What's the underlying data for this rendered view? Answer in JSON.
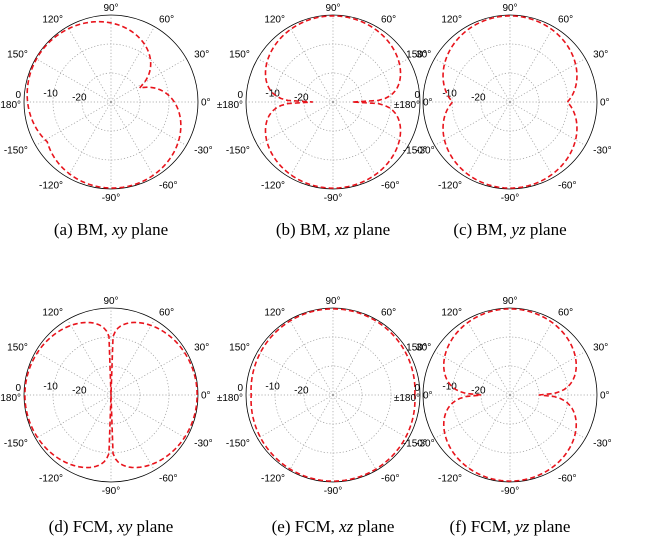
{
  "chart_data": [
    {
      "type": "polar",
      "caption": {
        "prefix": "(a) BM, ",
        "italic": "xy",
        "suffix": " plane"
      },
      "angle_labels": [
        "90°",
        "60°",
        "30°",
        "0°",
        "-30°",
        "-60°",
        "-90°",
        "-120°",
        "-150°",
        "0\n±180°",
        "150°",
        "120°"
      ],
      "radial_labels": [
        "-10",
        "-20"
      ],
      "r_ticks_db": [
        0,
        -10,
        -20,
        -30
      ],
      "r_min_db": -30,
      "curve_color": "#e8141c",
      "series": [
        {
          "type": "lobes",
          "min_db": -28,
          "lobes": [
            {
              "center_deg": 145,
              "width_deg": 160
            },
            {
              "center_deg": -85,
              "width_deg": 150
            }
          ]
        }
      ]
    },
    {
      "type": "polar",
      "caption": {
        "prefix": "(b) BM, ",
        "italic": "xz",
        "suffix": " plane"
      },
      "angle_labels": [
        "90°",
        "60°",
        "30°",
        "0°",
        "-30°",
        "-60°",
        "-90°",
        "-120°",
        "-150°",
        "0\n±180°",
        "150°",
        "120°"
      ],
      "radial_labels": [
        "-10",
        "-20"
      ],
      "r_ticks_db": [
        0,
        -10,
        -20,
        -30
      ],
      "r_min_db": -30,
      "curve_color": "#e8141c",
      "series": [
        {
          "type": "peanut",
          "min_db": -23,
          "sharpness": 0.6,
          "axis_deg": 90
        }
      ]
    },
    {
      "type": "polar",
      "caption": {
        "prefix": "(c) BM, ",
        "italic": "yz",
        "suffix": " plane"
      },
      "angle_labels": [
        "90°",
        "60°",
        "30°",
        "0°",
        "-30°",
        "-60°",
        "-90°",
        "-120°",
        "-150°",
        "0\n±180°",
        "150°",
        "120°"
      ],
      "radial_labels": [
        "-10",
        "-20"
      ],
      "r_ticks_db": [
        0,
        -10,
        -20,
        -30
      ],
      "r_min_db": -30,
      "curve_color": "#e8141c",
      "series": [
        {
          "type": "peanut",
          "min_db": -10,
          "sharpness": 1.0,
          "axis_deg": 90
        }
      ]
    },
    {
      "type": "polar",
      "caption": {
        "prefix": "(d) FCM, ",
        "italic": "xy",
        "suffix": " plane"
      },
      "angle_labels": [
        "90°",
        "60°",
        "30°",
        "0°",
        "-30°",
        "-60°",
        "-90°",
        "-120°",
        "-150°",
        "0\n±180°",
        "150°",
        "120°"
      ],
      "radial_labels": [
        "-10",
        "-20"
      ],
      "r_ticks_db": [
        0,
        -10,
        -20,
        -30
      ],
      "r_min_db": -30,
      "curve_color": "#e8141c",
      "series": [
        {
          "type": "peanut",
          "min_db": -30,
          "sharpness": 0.35,
          "axis_deg": 0
        }
      ]
    },
    {
      "type": "polar",
      "caption": {
        "prefix": "(e) FCM, ",
        "italic": "xz",
        "suffix": " plane"
      },
      "angle_labels": [
        "90°",
        "60°",
        "30°",
        "0°",
        "-30°",
        "-60°",
        "-90°",
        "-120°",
        "-150°",
        "0\n±180°",
        "150°",
        "120°"
      ],
      "radial_labels": [
        "-10",
        "-20"
      ],
      "r_ticks_db": [
        0,
        -10,
        -20,
        -30
      ],
      "r_min_db": -30,
      "curve_color": "#e8141c",
      "series": [
        {
          "type": "peanut",
          "min_db": -1.5,
          "sharpness": 1.0,
          "axis_deg": 90
        }
      ]
    },
    {
      "type": "polar",
      "caption": {
        "prefix": "(f) FCM, ",
        "italic": "yz",
        "suffix": " plane"
      },
      "angle_labels": [
        "90°",
        "60°",
        "30°",
        "0°",
        "-30°",
        "-60°",
        "-90°",
        "-120°",
        "-150°",
        "0\n±180°",
        "150°",
        "120°"
      ],
      "radial_labels": [
        "-10",
        "-20"
      ],
      "r_ticks_db": [
        0,
        -10,
        -20,
        -30
      ],
      "r_min_db": -30,
      "curve_color": "#e8141c",
      "series": [
        {
          "type": "peanut",
          "min_db": -20,
          "sharpness": 0.7,
          "axis_deg": 90
        }
      ]
    }
  ]
}
